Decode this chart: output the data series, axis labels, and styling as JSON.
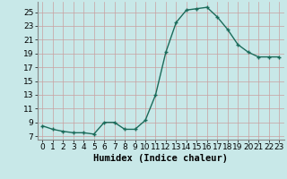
{
  "x": [
    0,
    1,
    2,
    3,
    4,
    5,
    6,
    7,
    8,
    9,
    10,
    11,
    12,
    13,
    14,
    15,
    16,
    17,
    18,
    19,
    20,
    21,
    22,
    23
  ],
  "y": [
    8.5,
    8.0,
    7.7,
    7.5,
    7.5,
    7.3,
    9.0,
    9.0,
    8.0,
    8.0,
    9.3,
    13.0,
    19.2,
    23.5,
    25.3,
    25.5,
    25.7,
    24.3,
    22.5,
    20.3,
    19.2,
    18.5,
    18.5,
    18.5
  ],
  "line_color": "#1a6b5a",
  "bg_color": "#c8e8e8",
  "grid_color": "#c8a0a0",
  "xlabel": "Humidex (Indice chaleur)",
  "ylim": [
    6.5,
    26.5
  ],
  "xlim": [
    -0.5,
    23.5
  ],
  "yticks": [
    7,
    9,
    11,
    13,
    15,
    17,
    19,
    21,
    23,
    25
  ],
  "xticks": [
    0,
    1,
    2,
    3,
    4,
    5,
    6,
    7,
    8,
    9,
    10,
    11,
    12,
    13,
    14,
    15,
    16,
    17,
    18,
    19,
    20,
    21,
    22,
    23
  ],
  "xlabel_fontsize": 7.5,
  "tick_fontsize": 6.5,
  "marker": "+",
  "markersize": 3.5,
  "linewidth": 1.0
}
